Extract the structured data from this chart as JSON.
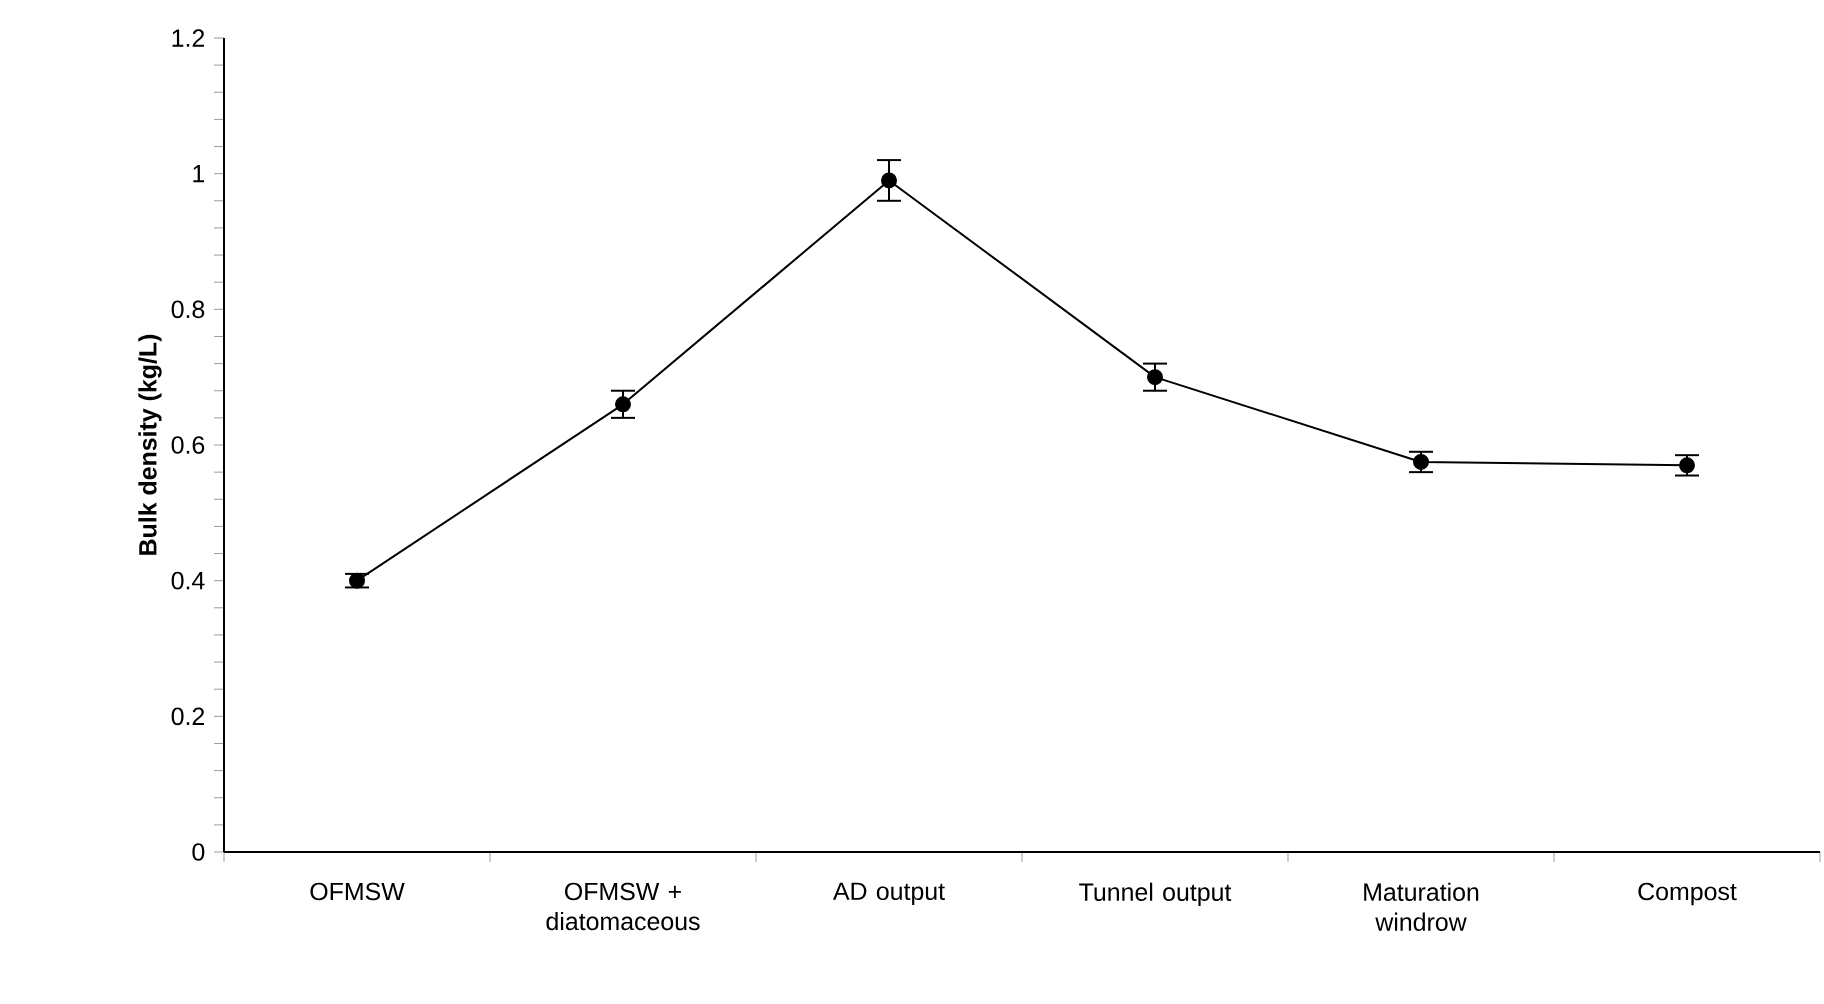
{
  "chart_data": {
    "type": "line",
    "ylabel": "Bulk density (kg/L)",
    "categories": [
      "OFMSW",
      "OFMSW + diatomaceous",
      "AD output",
      "Tunnel output",
      "Maturation windrow",
      "Compost"
    ],
    "series": [
      {
        "color": "#000000",
        "values": [
          0.4,
          0.66,
          0.99,
          0.7,
          0.575,
          0.57
        ],
        "errors": [
          0.01,
          0.02,
          0.03,
          0.02,
          0.015,
          0.015
        ]
      }
    ],
    "ylim": [
      0,
      1.2
    ],
    "yticks": [
      0,
      0.2,
      0.4,
      0.6,
      0.8,
      1,
      1.2
    ],
    "marker": "circle",
    "line_style": "solid"
  }
}
